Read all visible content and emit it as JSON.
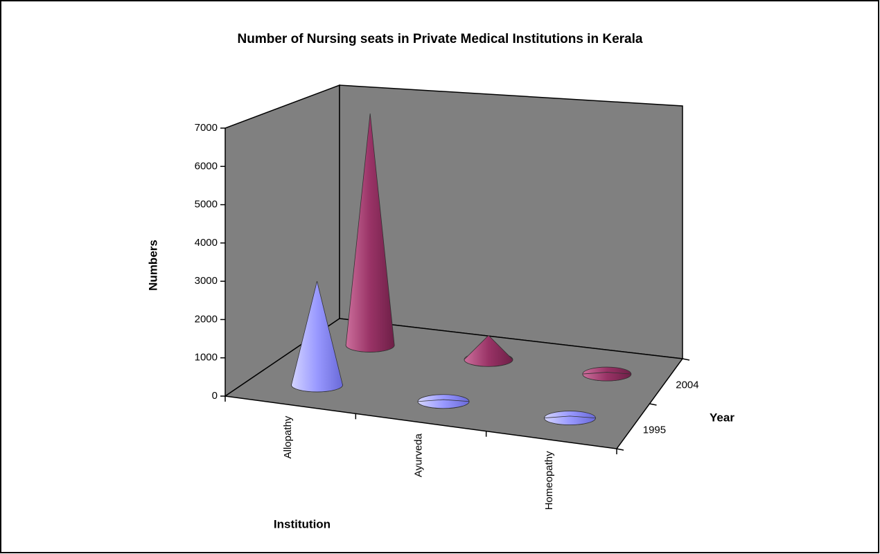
{
  "chart_data": {
    "type": "cone3d",
    "title": "Number of Nursing seats in Private Medical Institutions in Kerala",
    "y_label": "Numbers",
    "x_label": "Institution",
    "z_label": "Year",
    "categories": [
      "Allopathy",
      "Ayurveda",
      "Homeopathy"
    ],
    "series": [
      {
        "name": "1995",
        "color": "#9999ff",
        "values": [
          2800,
          50,
          50
        ]
      },
      {
        "name": "2004",
        "color": "#993366",
        "values": [
          6700,
          700,
          50
        ]
      }
    ],
    "ylim": [
      0,
      7000
    ],
    "yticks": [
      0,
      1000,
      2000,
      3000,
      4000,
      5000,
      6000,
      7000
    ]
  }
}
